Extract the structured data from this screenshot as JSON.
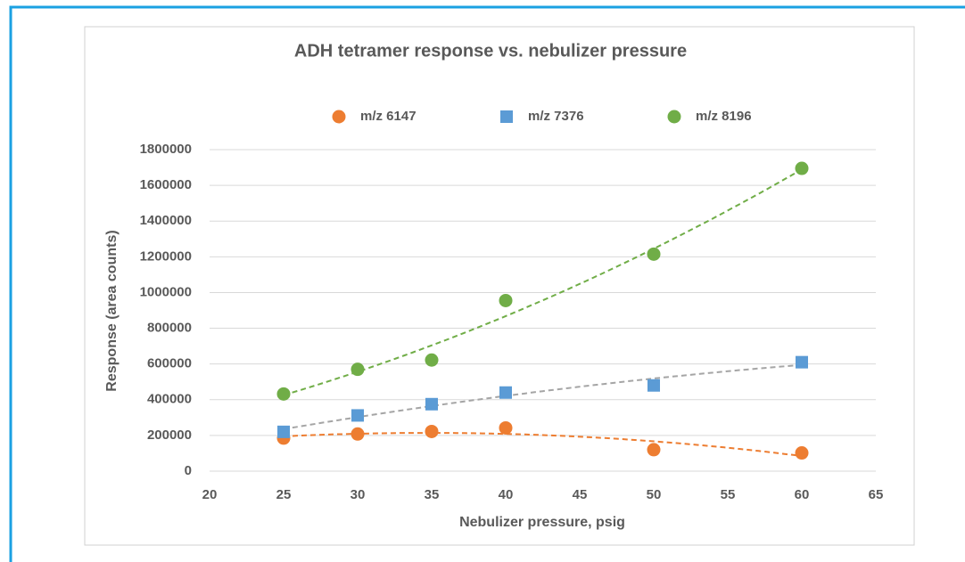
{
  "chart_data": {
    "type": "scatter",
    "title": "ADH tetramer response vs. nebulizer pressure",
    "x_label": "Nebulizer pressure, psig",
    "y_label": "Response (area counts)",
    "series": [
      {
        "name": "m/z 6147",
        "color": "#ed7d31",
        "marker": "circle",
        "trendline_color": "#ed7d31",
        "x": [
          25,
          30,
          35,
          40,
          50,
          60
        ],
        "values": [
          185000,
          208000,
          222000,
          242000,
          120000,
          102000
        ]
      },
      {
        "name": "m/z 7376",
        "color": "#5b9bd5",
        "marker": "square",
        "trendline_color": "#a5a5a5",
        "x": [
          25,
          30,
          35,
          40,
          50,
          60
        ],
        "values": [
          220000,
          312000,
          375000,
          440000,
          480000,
          610000
        ]
      },
      {
        "name": "m/z 8196",
        "color": "#70ad47",
        "marker": "circle",
        "trendline_color": "#70ad47",
        "x": [
          25,
          30,
          35,
          40,
          50,
          60
        ],
        "values": [
          432000,
          570000,
          622000,
          955000,
          1215000,
          1695000
        ]
      }
    ],
    "xlim": [
      20,
      65
    ],
    "xticks": [
      20,
      25,
      30,
      35,
      40,
      45,
      50,
      55,
      60,
      65
    ],
    "ylim": [
      0,
      1800000
    ],
    "yticks": [
      0,
      200000,
      400000,
      600000,
      800000,
      1000000,
      1200000,
      1400000,
      1600000,
      1800000
    ],
    "grid": true,
    "legend": "top"
  }
}
